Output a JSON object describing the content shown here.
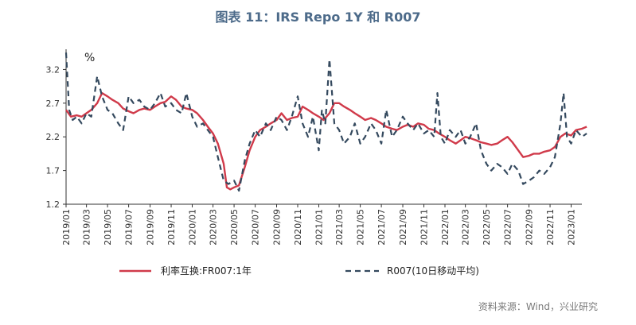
{
  "title": "图表 11：IRS Repo 1Y 和 R007",
  "source": "资料来源：Wind，兴业研究",
  "chart_data": {
    "type": "line",
    "unit": "%",
    "ylim": [
      1.2,
      3.5
    ],
    "yticks": [
      1.2,
      1.7,
      2.2,
      2.7,
      3.2
    ],
    "xlim": [
      "2019-01",
      "2023-02"
    ],
    "xticks": [
      "2019/01",
      "2019/03",
      "2019/05",
      "2019/07",
      "2019/09",
      "2019/11",
      "2020/01",
      "2020/03",
      "2020/05",
      "2020/07",
      "2020/09",
      "2020/11",
      "2021/01",
      "2021/03",
      "2021/05",
      "2021/07",
      "2021/09",
      "2021/11",
      "2022/01",
      "2022/03",
      "2022/05",
      "2022/07",
      "2022/09",
      "2022/11",
      "2023/01"
    ],
    "grid": false,
    "legend_position": "bottom",
    "series": [
      {
        "name": "利率互换:FR007:1年",
        "color": "#d03a4a",
        "style": "solid",
        "points": [
          [
            "2019-01-01",
            2.6
          ],
          [
            "2019-01-15",
            2.5
          ],
          [
            "2019-02-01",
            2.52
          ],
          [
            "2019-02-15",
            2.5
          ],
          [
            "2019-03-01",
            2.55
          ],
          [
            "2019-03-15",
            2.6
          ],
          [
            "2019-04-01",
            2.7
          ],
          [
            "2019-04-15",
            2.85
          ],
          [
            "2019-05-01",
            2.8
          ],
          [
            "2019-05-15",
            2.75
          ],
          [
            "2019-06-01",
            2.7
          ],
          [
            "2019-06-15",
            2.62
          ],
          [
            "2019-07-01",
            2.58
          ],
          [
            "2019-07-15",
            2.55
          ],
          [
            "2019-08-01",
            2.6
          ],
          [
            "2019-08-15",
            2.62
          ],
          [
            "2019-09-01",
            2.6
          ],
          [
            "2019-09-15",
            2.65
          ],
          [
            "2019-10-01",
            2.7
          ],
          [
            "2019-10-15",
            2.72
          ],
          [
            "2019-11-01",
            2.8
          ],
          [
            "2019-11-15",
            2.75
          ],
          [
            "2019-12-01",
            2.65
          ],
          [
            "2019-12-15",
            2.62
          ],
          [
            "2020-01-01",
            2.6
          ],
          [
            "2020-01-15",
            2.55
          ],
          [
            "2020-02-01",
            2.45
          ],
          [
            "2020-02-15",
            2.35
          ],
          [
            "2020-03-01",
            2.25
          ],
          [
            "2020-03-15",
            2.1
          ],
          [
            "2020-04-01",
            1.8
          ],
          [
            "2020-04-10",
            1.45
          ],
          [
            "2020-04-20",
            1.42
          ],
          [
            "2020-05-01",
            1.45
          ],
          [
            "2020-05-15",
            1.48
          ],
          [
            "2020-06-01",
            1.75
          ],
          [
            "2020-06-15",
            2.0
          ],
          [
            "2020-07-01",
            2.2
          ],
          [
            "2020-07-15",
            2.3
          ],
          [
            "2020-08-01",
            2.35
          ],
          [
            "2020-08-15",
            2.4
          ],
          [
            "2020-09-01",
            2.45
          ],
          [
            "2020-09-15",
            2.55
          ],
          [
            "2020-10-01",
            2.45
          ],
          [
            "2020-10-15",
            2.48
          ],
          [
            "2020-11-01",
            2.5
          ],
          [
            "2020-11-15",
            2.65
          ],
          [
            "2020-12-01",
            2.6
          ],
          [
            "2020-12-15",
            2.55
          ],
          [
            "2021-01-01",
            2.5
          ],
          [
            "2021-01-15",
            2.45
          ],
          [
            "2021-02-01",
            2.55
          ],
          [
            "2021-02-15",
            2.7
          ],
          [
            "2021-03-01",
            2.7
          ],
          [
            "2021-03-15",
            2.65
          ],
          [
            "2021-04-01",
            2.6
          ],
          [
            "2021-04-15",
            2.55
          ],
          [
            "2021-05-01",
            2.5
          ],
          [
            "2021-05-15",
            2.45
          ],
          [
            "2021-06-01",
            2.48
          ],
          [
            "2021-06-15",
            2.45
          ],
          [
            "2021-07-01",
            2.4
          ],
          [
            "2021-07-15",
            2.35
          ],
          [
            "2021-08-01",
            2.32
          ],
          [
            "2021-08-15",
            2.3
          ],
          [
            "2021-09-01",
            2.35
          ],
          [
            "2021-09-15",
            2.38
          ],
          [
            "2021-10-01",
            2.35
          ],
          [
            "2021-10-15",
            2.4
          ],
          [
            "2021-11-01",
            2.38
          ],
          [
            "2021-11-15",
            2.32
          ],
          [
            "2021-12-01",
            2.3
          ],
          [
            "2021-12-15",
            2.25
          ],
          [
            "2022-01-01",
            2.2
          ],
          [
            "2022-01-15",
            2.15
          ],
          [
            "2022-02-01",
            2.1
          ],
          [
            "2022-02-15",
            2.15
          ],
          [
            "2022-03-01",
            2.2
          ],
          [
            "2022-03-15",
            2.18
          ],
          [
            "2022-04-01",
            2.15
          ],
          [
            "2022-04-15",
            2.12
          ],
          [
            "2022-05-01",
            2.1
          ],
          [
            "2022-05-15",
            2.08
          ],
          [
            "2022-06-01",
            2.1
          ],
          [
            "2022-06-15",
            2.15
          ],
          [
            "2022-07-01",
            2.2
          ],
          [
            "2022-07-15",
            2.12
          ],
          [
            "2022-08-01",
            2.0
          ],
          [
            "2022-08-15",
            1.9
          ],
          [
            "2022-09-01",
            1.92
          ],
          [
            "2022-09-15",
            1.95
          ],
          [
            "2022-10-01",
            1.95
          ],
          [
            "2022-10-15",
            1.98
          ],
          [
            "2022-11-01",
            2.0
          ],
          [
            "2022-11-15",
            2.05
          ],
          [
            "2022-12-01",
            2.2
          ],
          [
            "2022-12-15",
            2.25
          ],
          [
            "2023-01-01",
            2.22
          ],
          [
            "2023-01-15",
            2.3
          ],
          [
            "2023-02-01",
            2.32
          ],
          [
            "2023-02-15",
            2.35
          ]
        ]
      },
      {
        "name": "R007(10日移动平均)",
        "color": "#34495e",
        "style": "dashed",
        "points": [
          [
            "2019-01-01",
            3.45
          ],
          [
            "2019-01-10",
            2.6
          ],
          [
            "2019-01-20",
            2.45
          ],
          [
            "2019-02-01",
            2.5
          ],
          [
            "2019-02-15",
            2.4
          ],
          [
            "2019-03-01",
            2.55
          ],
          [
            "2019-03-15",
            2.5
          ],
          [
            "2019-04-01",
            3.1
          ],
          [
            "2019-04-15",
            2.8
          ],
          [
            "2019-05-01",
            2.6
          ],
          [
            "2019-05-15",
            2.55
          ],
          [
            "2019-06-01",
            2.4
          ],
          [
            "2019-06-15",
            2.3
          ],
          [
            "2019-07-01",
            2.8
          ],
          [
            "2019-07-15",
            2.7
          ],
          [
            "2019-08-01",
            2.75
          ],
          [
            "2019-08-15",
            2.65
          ],
          [
            "2019-09-01",
            2.6
          ],
          [
            "2019-09-15",
            2.7
          ],
          [
            "2019-10-01",
            2.85
          ],
          [
            "2019-10-15",
            2.65
          ],
          [
            "2019-11-01",
            2.7
          ],
          [
            "2019-11-15",
            2.6
          ],
          [
            "2019-12-01",
            2.55
          ],
          [
            "2019-12-15",
            2.85
          ],
          [
            "2020-01-01",
            2.5
          ],
          [
            "2020-01-15",
            2.35
          ],
          [
            "2020-02-01",
            2.4
          ],
          [
            "2020-02-15",
            2.3
          ],
          [
            "2020-03-01",
            2.2
          ],
          [
            "2020-03-15",
            1.9
          ],
          [
            "2020-04-01",
            1.55
          ],
          [
            "2020-04-15",
            1.5
          ],
          [
            "2020-05-01",
            1.55
          ],
          [
            "2020-05-15",
            1.4
          ],
          [
            "2020-06-01",
            1.85
          ],
          [
            "2020-06-15",
            2.1
          ],
          [
            "2020-07-01",
            2.3
          ],
          [
            "2020-07-15",
            2.2
          ],
          [
            "2020-08-01",
            2.4
          ],
          [
            "2020-08-15",
            2.3
          ],
          [
            "2020-09-01",
            2.5
          ],
          [
            "2020-09-15",
            2.45
          ],
          [
            "2020-10-01",
            2.3
          ],
          [
            "2020-10-15",
            2.5
          ],
          [
            "2020-11-01",
            2.8
          ],
          [
            "2020-11-15",
            2.4
          ],
          [
            "2020-12-01",
            2.2
          ],
          [
            "2020-12-15",
            2.5
          ],
          [
            "2021-01-01",
            2.0
          ],
          [
            "2021-01-10",
            2.6
          ],
          [
            "2021-01-20",
            2.4
          ],
          [
            "2021-02-01",
            3.35
          ],
          [
            "2021-02-15",
            2.4
          ],
          [
            "2021-03-01",
            2.3
          ],
          [
            "2021-03-15",
            2.1
          ],
          [
            "2021-04-01",
            2.2
          ],
          [
            "2021-04-15",
            2.4
          ],
          [
            "2021-05-01",
            2.1
          ],
          [
            "2021-05-15",
            2.2
          ],
          [
            "2021-06-01",
            2.4
          ],
          [
            "2021-06-15",
            2.3
          ],
          [
            "2021-07-01",
            2.1
          ],
          [
            "2021-07-15",
            2.6
          ],
          [
            "2021-08-01",
            2.2
          ],
          [
            "2021-08-15",
            2.3
          ],
          [
            "2021-09-01",
            2.5
          ],
          [
            "2021-09-15",
            2.4
          ],
          [
            "2021-10-01",
            2.3
          ],
          [
            "2021-10-15",
            2.4
          ],
          [
            "2021-11-01",
            2.25
          ],
          [
            "2021-11-15",
            2.3
          ],
          [
            "2021-12-01",
            2.2
          ],
          [
            "2021-12-10",
            2.85
          ],
          [
            "2021-12-20",
            2.2
          ],
          [
            "2022-01-01",
            2.1
          ],
          [
            "2022-01-15",
            2.3
          ],
          [
            "2022-02-01",
            2.2
          ],
          [
            "2022-02-15",
            2.3
          ],
          [
            "2022-03-01",
            2.1
          ],
          [
            "2022-03-15",
            2.2
          ],
          [
            "2022-04-01",
            2.4
          ],
          [
            "2022-04-15",
            2.0
          ],
          [
            "2022-05-01",
            1.8
          ],
          [
            "2022-05-15",
            1.7
          ],
          [
            "2022-06-01",
            1.8
          ],
          [
            "2022-06-15",
            1.75
          ],
          [
            "2022-07-01",
            1.65
          ],
          [
            "2022-07-15",
            1.8
          ],
          [
            "2022-08-01",
            1.7
          ],
          [
            "2022-08-15",
            1.5
          ],
          [
            "2022-09-01",
            1.55
          ],
          [
            "2022-09-15",
            1.6
          ],
          [
            "2022-10-01",
            1.7
          ],
          [
            "2022-10-15",
            1.65
          ],
          [
            "2022-11-01",
            1.75
          ],
          [
            "2022-11-15",
            1.9
          ],
          [
            "2022-12-01",
            2.4
          ],
          [
            "2022-12-10",
            2.85
          ],
          [
            "2022-12-20",
            2.2
          ],
          [
            "2023-01-01",
            2.1
          ],
          [
            "2023-01-15",
            2.3
          ],
          [
            "2023-02-01",
            2.2
          ],
          [
            "2023-02-15",
            2.25
          ]
        ]
      }
    ]
  }
}
